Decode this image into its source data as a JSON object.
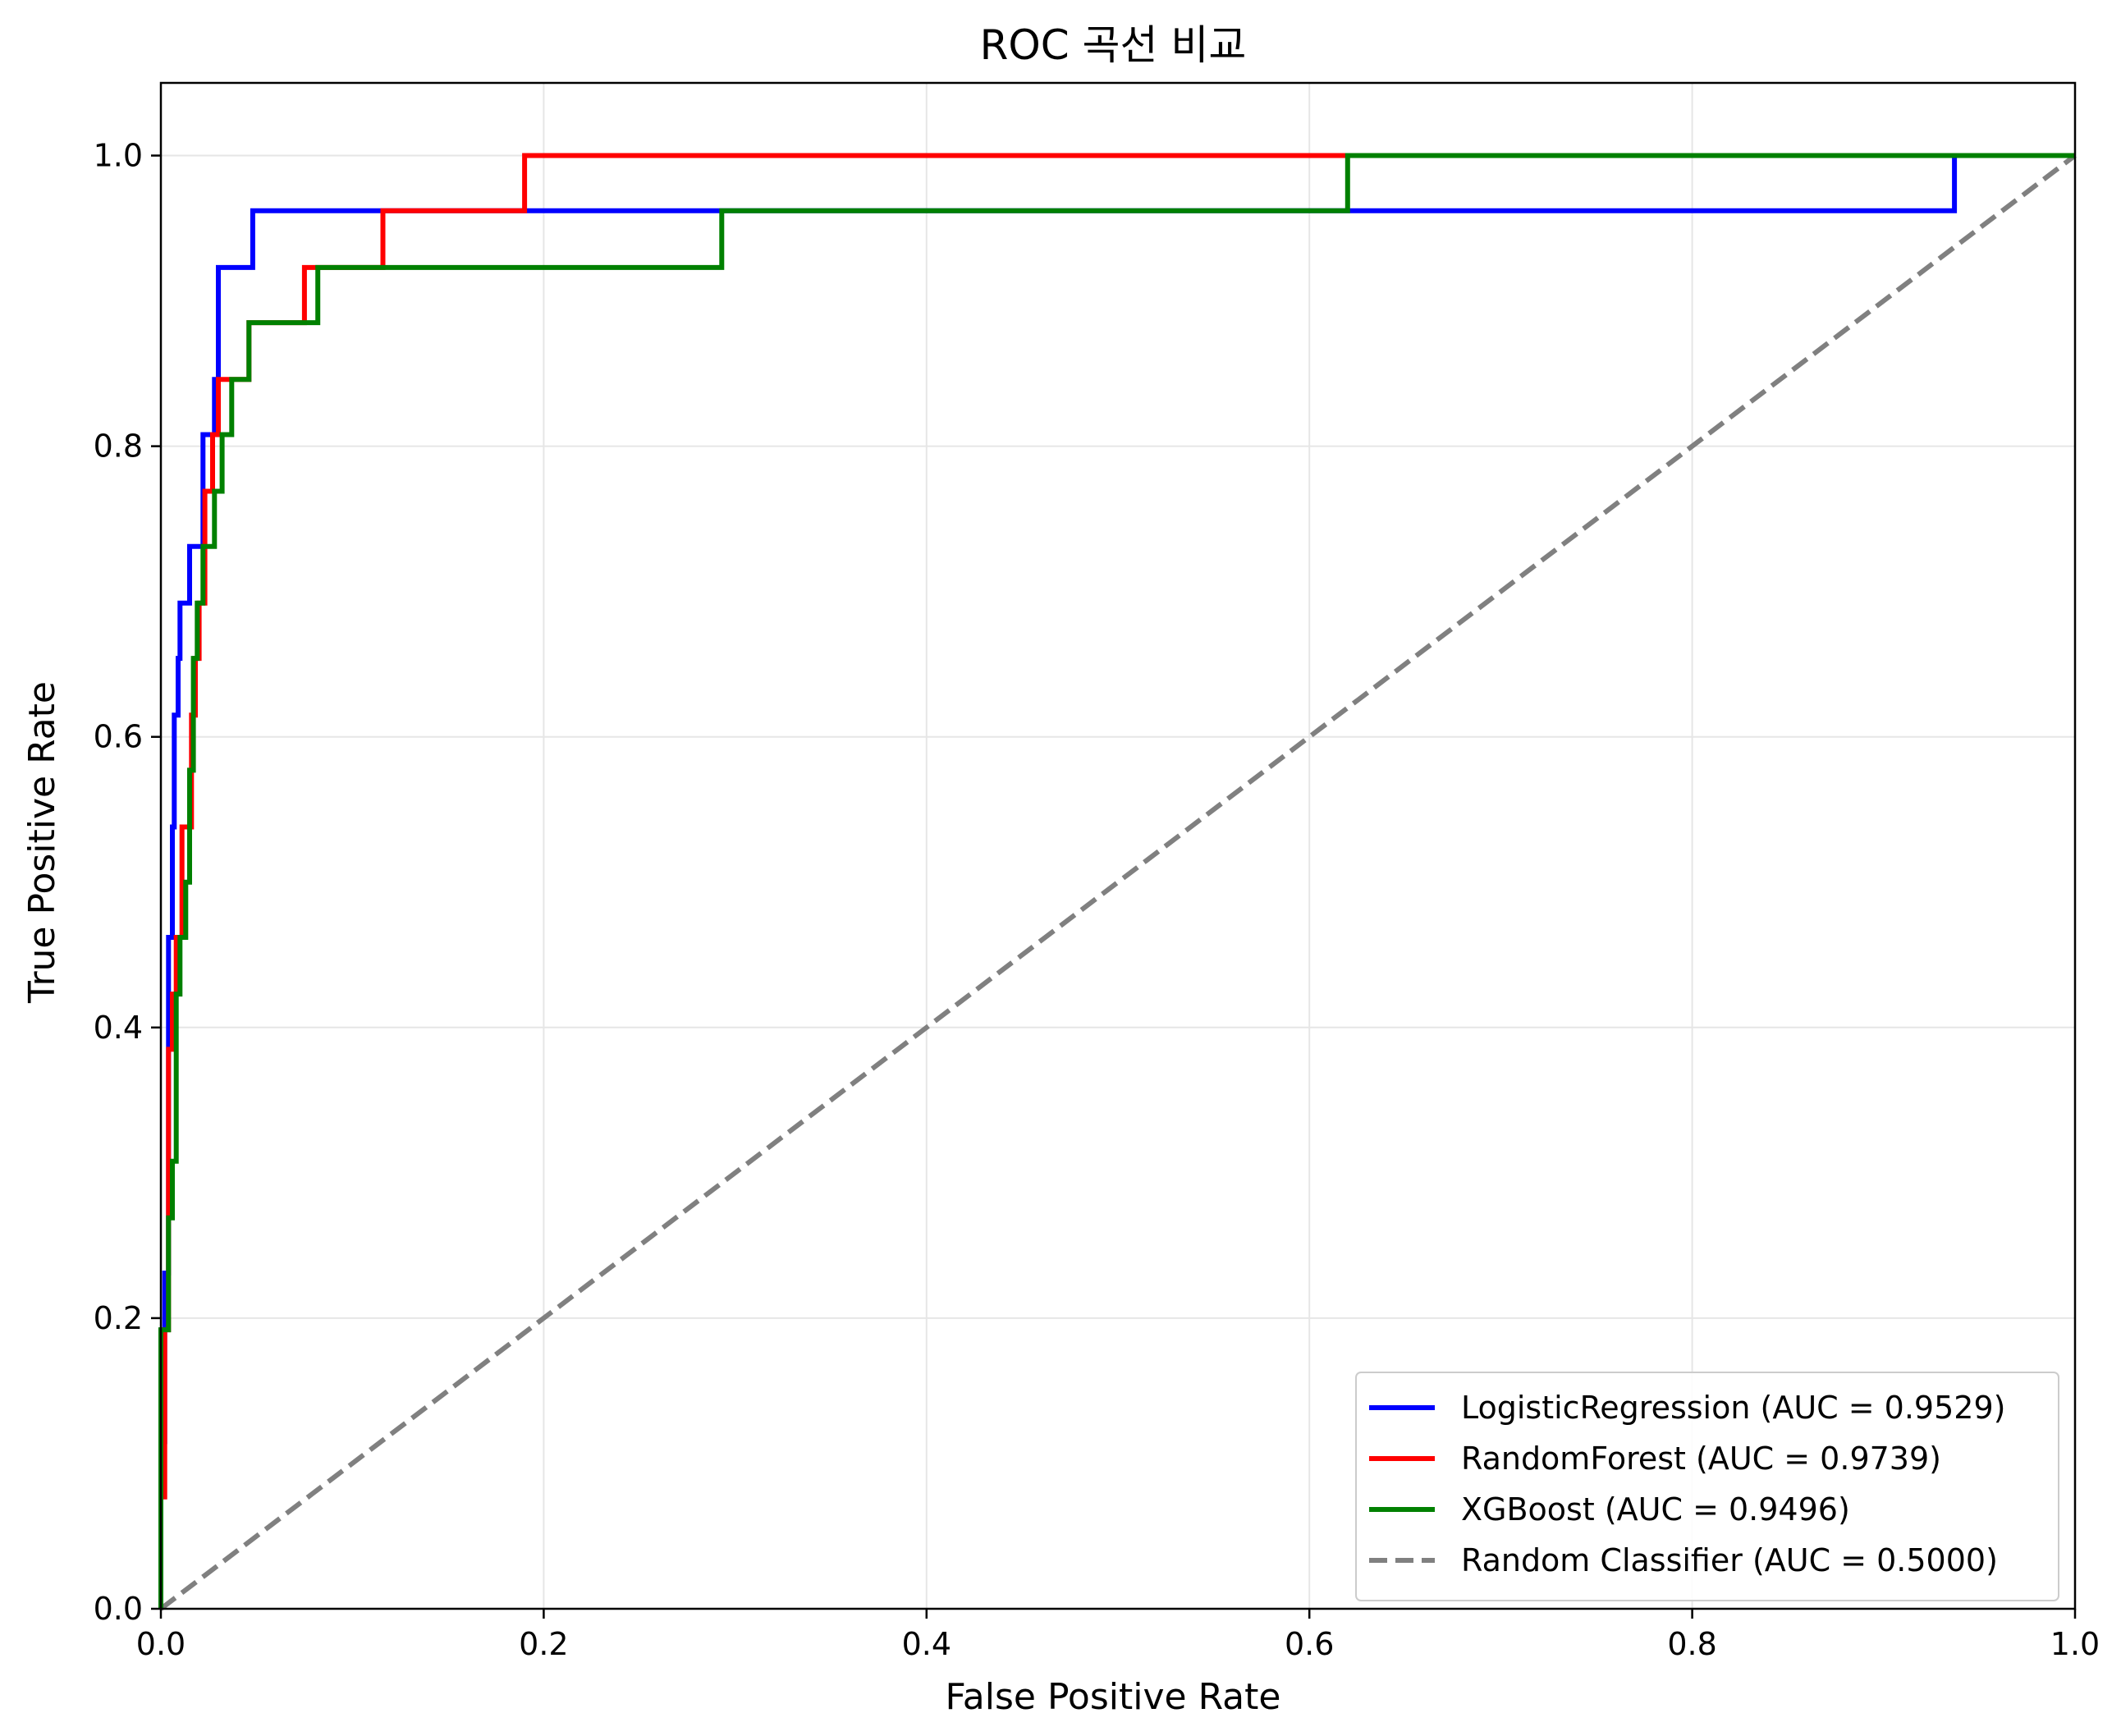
{
  "chart_data": {
    "type": "line",
    "title": "ROC 곡선 비교",
    "xlabel": "False Positive Rate",
    "ylabel": "True Positive Rate",
    "xlim": [
      0.0,
      1.0
    ],
    "ylim": [
      0.0,
      1.05
    ],
    "xticks": [
      "0.0",
      "0.2",
      "0.4",
      "0.6",
      "0.8",
      "1.0"
    ],
    "yticks": [
      "0.0",
      "0.2",
      "0.4",
      "0.6",
      "0.8",
      "1.0"
    ],
    "grid": true,
    "legend_position": "lower-right",
    "series": [
      {
        "name": "LogisticRegression (AUC = 0.9529)",
        "color": "#0000ff",
        "dash": "solid",
        "x": [
          0,
          0,
          0.002,
          0.002,
          0.004,
          0.004,
          0.006,
          0.006,
          0.007,
          0.007,
          0.009,
          0.009,
          0.01,
          0.01,
          0.012,
          0.012,
          0.015,
          0.015,
          0.022,
          0.022,
          0.028,
          0.028,
          0.03,
          0.03,
          0.048,
          0.048,
          0.937,
          0.937,
          1.0
        ],
        "y": [
          0,
          0.115,
          0.115,
          0.231,
          0.231,
          0.462,
          0.462,
          0.538,
          0.538,
          0.615,
          0.615,
          0.654,
          0.654,
          0.692,
          0.692,
          0.692,
          0.692,
          0.731,
          0.731,
          0.808,
          0.808,
          0.846,
          0.846,
          0.923,
          0.923,
          0.962,
          0.962,
          1.0,
          1.0
        ]
      },
      {
        "name": "RandomForest (AUC = 0.9739)",
        "color": "#ff0000",
        "dash": "solid",
        "x": [
          0,
          0,
          0.002,
          0.002,
          0.004,
          0.004,
          0.006,
          0.006,
          0.008,
          0.008,
          0.011,
          0.011,
          0.016,
          0.016,
          0.018,
          0.018,
          0.02,
          0.02,
          0.023,
          0.023,
          0.027,
          0.027,
          0.03,
          0.03,
          0.046,
          0.046,
          0.075,
          0.075,
          0.116,
          0.116,
          0.19,
          0.19,
          1.0
        ],
        "y": [
          0,
          0.077,
          0.077,
          0.192,
          0.192,
          0.385,
          0.385,
          0.423,
          0.423,
          0.462,
          0.462,
          0.538,
          0.538,
          0.615,
          0.615,
          0.654,
          0.654,
          0.692,
          0.692,
          0.769,
          0.769,
          0.808,
          0.808,
          0.846,
          0.846,
          0.885,
          0.885,
          0.923,
          0.923,
          0.962,
          0.962,
          1.0,
          1.0
        ]
      },
      {
        "name": "XGBoost (AUC = 0.9496)",
        "color": "#008000",
        "dash": "solid",
        "x": [
          0,
          0,
          0.004,
          0.004,
          0.006,
          0.006,
          0.008,
          0.008,
          0.01,
          0.01,
          0.013,
          0.013,
          0.015,
          0.015,
          0.017,
          0.017,
          0.019,
          0.019,
          0.022,
          0.022,
          0.028,
          0.028,
          0.032,
          0.032,
          0.037,
          0.037,
          0.046,
          0.046,
          0.082,
          0.082,
          0.293,
          0.293,
          0.62,
          0.62,
          1.0
        ],
        "y": [
          0,
          0.192,
          0.192,
          0.269,
          0.269,
          0.308,
          0.308,
          0.423,
          0.423,
          0.462,
          0.462,
          0.5,
          0.5,
          0.577,
          0.577,
          0.654,
          0.654,
          0.692,
          0.692,
          0.731,
          0.731,
          0.769,
          0.769,
          0.808,
          0.808,
          0.846,
          0.846,
          0.885,
          0.885,
          0.923,
          0.923,
          0.962,
          0.962,
          1.0,
          1.0
        ]
      },
      {
        "name": "Random Classifier (AUC = 0.5000)",
        "color": "#808080",
        "dash": "dashed",
        "x": [
          0,
          1
        ],
        "y": [
          0,
          1
        ]
      }
    ]
  }
}
